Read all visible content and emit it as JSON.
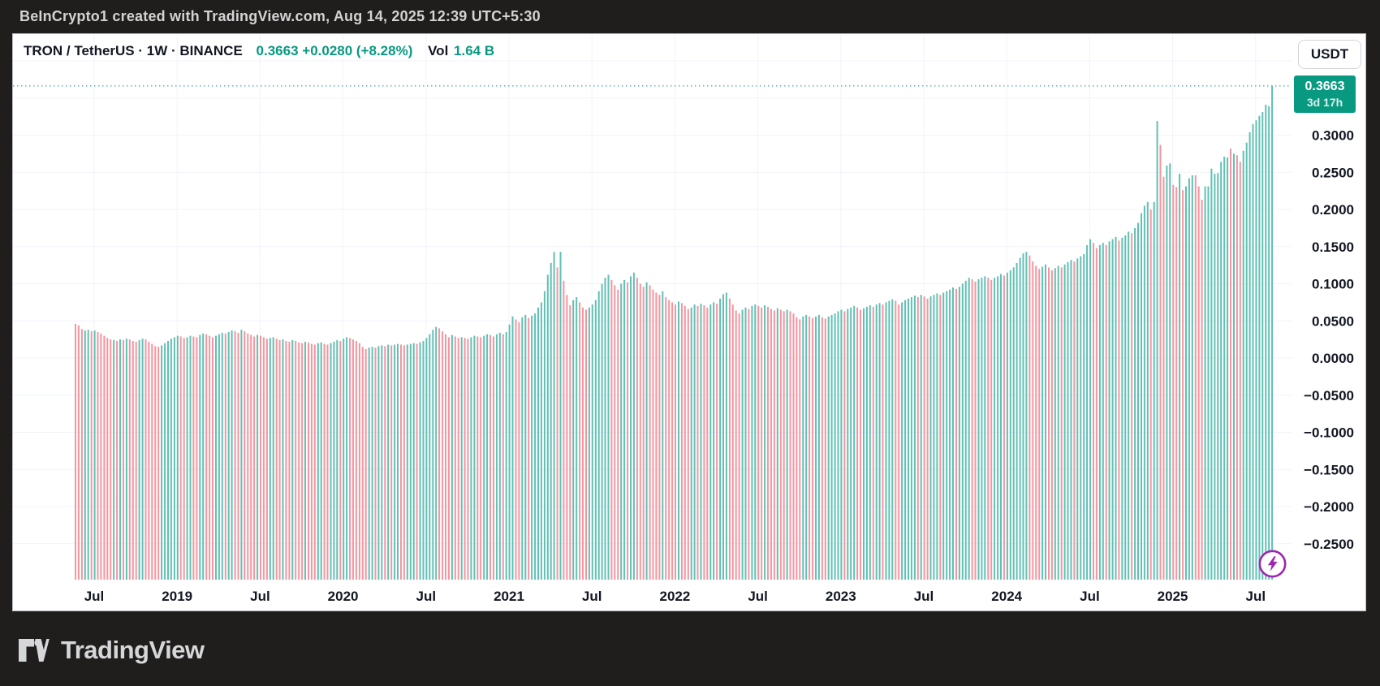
{
  "top_bar": {
    "text": "BeInCrypto1 created with TradingView.com, Aug 14, 2025 12:39 UTC+5:30"
  },
  "header": {
    "symbol": "TRON / TetherUS · 1W · BINANCE",
    "price_summary": "0.3663  +0.0280 (+8.28%)",
    "vol_label": "Vol",
    "volume": "1.64 B"
  },
  "currency_button": {
    "label": "USDT"
  },
  "price_badge": {
    "price": "0.3663",
    "countdown": "3d 17h"
  },
  "footer": {
    "brand": "TradingView"
  },
  "colors": {
    "up": "#61c0b4",
    "down": "#f5959f",
    "grid": "#f0f3fa",
    "accent_green": "#089981",
    "price_line": "#45b1a5",
    "dark_text": "#131722",
    "purple": "#9c27b0",
    "panel_bg": "#ffffff",
    "frame_bg": "#201d1d"
  },
  "chart_data": {
    "type": "bar",
    "title": "TRON / TetherUS · 1W · BINANCE",
    "unit": "USDT",
    "interval": "1W",
    "last_price": 0.3663,
    "change_abs": "+0.0280",
    "change_pct": "+8.28%",
    "volume": "1.64 B",
    "price_line_value": 0.3663,
    "legend_position": "none",
    "grid": true,
    "y_min_visible": -0.298,
    "y_max_visible": 0.436,
    "grid_values": [
      0.4,
      0.35,
      0.3,
      0.25,
      0.2,
      0.15,
      0.1,
      0.05,
      0.0,
      -0.05,
      -0.1,
      -0.15,
      -0.2,
      -0.25
    ],
    "y_ticks": [
      {
        "label": "0.3000",
        "value": 0.3
      },
      {
        "label": "0.2500",
        "value": 0.25
      },
      {
        "label": "0.2000",
        "value": 0.2
      },
      {
        "label": "0.1500",
        "value": 0.15
      },
      {
        "label": "0.1000",
        "value": 0.1
      },
      {
        "label": "0.0500",
        "value": 0.05
      },
      {
        "label": "0.0000",
        "value": 0.0
      },
      {
        "label": "−0.0500",
        "value": -0.05
      },
      {
        "label": "−0.1000",
        "value": -0.1
      },
      {
        "label": "−0.1500",
        "value": -0.15
      },
      {
        "label": "−0.2000",
        "value": -0.2
      },
      {
        "label": "−0.2500",
        "value": -0.25
      }
    ],
    "x_ticks": [
      "Jul",
      "2019",
      "Jul",
      "2020",
      "Jul",
      "2021",
      "Jul",
      "2022",
      "Jul",
      "2023",
      "Jul",
      "2024",
      "Jul",
      "2025",
      "Jul"
    ],
    "weekly_high_values": [
      0.046,
      0.044,
      0.039,
      0.037,
      0.038,
      0.036,
      0.037,
      0.035,
      0.033,
      0.03,
      0.027,
      0.025,
      0.024,
      0.023,
      0.025,
      0.024,
      0.026,
      0.025,
      0.023,
      0.022,
      0.024,
      0.026,
      0.025,
      0.022,
      0.019,
      0.016,
      0.015,
      0.017,
      0.02,
      0.023,
      0.026,
      0.028,
      0.03,
      0.029,
      0.027,
      0.028,
      0.03,
      0.029,
      0.028,
      0.031,
      0.033,
      0.032,
      0.03,
      0.028,
      0.03,
      0.032,
      0.034,
      0.033,
      0.035,
      0.037,
      0.036,
      0.034,
      0.038,
      0.036,
      0.033,
      0.031,
      0.029,
      0.031,
      0.03,
      0.028,
      0.026,
      0.027,
      0.028,
      0.026,
      0.024,
      0.025,
      0.023,
      0.022,
      0.024,
      0.023,
      0.021,
      0.02,
      0.022,
      0.021,
      0.019,
      0.018,
      0.02,
      0.021,
      0.019,
      0.018,
      0.02,
      0.022,
      0.024,
      0.023,
      0.026,
      0.028,
      0.027,
      0.025,
      0.023,
      0.02,
      0.015,
      0.012,
      0.014,
      0.015,
      0.014,
      0.016,
      0.017,
      0.016,
      0.018,
      0.017,
      0.018,
      0.019,
      0.018,
      0.017,
      0.018,
      0.019,
      0.02,
      0.019,
      0.021,
      0.023,
      0.027,
      0.032,
      0.038,
      0.042,
      0.04,
      0.036,
      0.032,
      0.028,
      0.031,
      0.029,
      0.027,
      0.028,
      0.027,
      0.026,
      0.028,
      0.03,
      0.029,
      0.028,
      0.03,
      0.032,
      0.031,
      0.029,
      0.032,
      0.034,
      0.032,
      0.035,
      0.045,
      0.056,
      0.052,
      0.048,
      0.055,
      0.058,
      0.054,
      0.057,
      0.06,
      0.068,
      0.075,
      0.09,
      0.112,
      0.128,
      0.143,
      0.122,
      0.143,
      0.104,
      0.085,
      0.071,
      0.078,
      0.082,
      0.075,
      0.068,
      0.065,
      0.068,
      0.072,
      0.078,
      0.09,
      0.1,
      0.108,
      0.112,
      0.105,
      0.098,
      0.092,
      0.1,
      0.105,
      0.102,
      0.11,
      0.115,
      0.108,
      0.1,
      0.096,
      0.102,
      0.098,
      0.092,
      0.088,
      0.085,
      0.09,
      0.082,
      0.078,
      0.075,
      0.072,
      0.076,
      0.074,
      0.07,
      0.066,
      0.068,
      0.072,
      0.07,
      0.073,
      0.071,
      0.068,
      0.072,
      0.075,
      0.073,
      0.08,
      0.086,
      0.088,
      0.08,
      0.072,
      0.064,
      0.06,
      0.065,
      0.068,
      0.066,
      0.07,
      0.072,
      0.07,
      0.068,
      0.071,
      0.069,
      0.066,
      0.064,
      0.067,
      0.065,
      0.063,
      0.065,
      0.063,
      0.06,
      0.055,
      0.052,
      0.056,
      0.058,
      0.056,
      0.054,
      0.056,
      0.058,
      0.055,
      0.053,
      0.056,
      0.058,
      0.06,
      0.063,
      0.065,
      0.063,
      0.066,
      0.068,
      0.07,
      0.068,
      0.065,
      0.067,
      0.069,
      0.071,
      0.069,
      0.072,
      0.074,
      0.072,
      0.075,
      0.077,
      0.079,
      0.077,
      0.072,
      0.075,
      0.078,
      0.08,
      0.082,
      0.084,
      0.082,
      0.085,
      0.083,
      0.08,
      0.083,
      0.085,
      0.087,
      0.085,
      0.088,
      0.09,
      0.092,
      0.095,
      0.093,
      0.096,
      0.1,
      0.104,
      0.108,
      0.106,
      0.103,
      0.106,
      0.108,
      0.11,
      0.108,
      0.105,
      0.108,
      0.11,
      0.113,
      0.111,
      0.115,
      0.118,
      0.122,
      0.128,
      0.135,
      0.141,
      0.143,
      0.138,
      0.13,
      0.124,
      0.12,
      0.123,
      0.126,
      0.122,
      0.118,
      0.121,
      0.124,
      0.122,
      0.126,
      0.129,
      0.132,
      0.13,
      0.134,
      0.137,
      0.14,
      0.152,
      0.16,
      0.155,
      0.148,
      0.152,
      0.155,
      0.152,
      0.157,
      0.16,
      0.163,
      0.158,
      0.162,
      0.165,
      0.17,
      0.168,
      0.175,
      0.182,
      0.195,
      0.205,
      0.21,
      0.2,
      0.21,
      0.319,
      0.287,
      0.244,
      0.259,
      0.262,
      0.233,
      0.23,
      0.248,
      0.226,
      0.231,
      0.242,
      0.246,
      0.246,
      0.231,
      0.213,
      0.231,
      0.231,
      0.255,
      0.248,
      0.249,
      0.264,
      0.271,
      0.27,
      0.282,
      0.275,
      0.273,
      0.264,
      0.279,
      0.29,
      0.304,
      0.315,
      0.32,
      0.326,
      0.331,
      0.341,
      0.339,
      0.366
    ],
    "bar_colors": "rrrggrgrrrrrgrgrgrrrggrrrrrggggggrrggrrggrrrgggrggrrgrrrrgrrrggrrgrrgrrrgrrrggrrgggrggrrrrrrggrggrgrggrrgggrggggggrrrrgrrgrrggrrggrrggrgggrrggrggggggggrgrrrggrrrgggggggrrrggrggrrrgrrrrgrrrrgrrrggrgrrggrgggrrrrggrggrrgrrrgrrgrrrrggrrggrrgggggrgggrrgggrggrgggrrgggggrgrrgggrggggrggggrrgggrrgggrgggggggrrrrggrrggrgggrgggggrrggrgggrgggrgggggrggrrggrrgrgggrrrggggggggrgrrgggggggggg"
  }
}
